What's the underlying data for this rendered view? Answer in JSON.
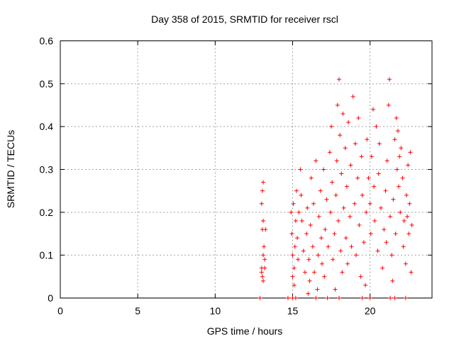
{
  "chart_data": {
    "type": "scatter",
    "title": "Day 358 of 2015, SRMTID for receiver rscl",
    "xlabel": "GPS time / hours",
    "ylabel": "SRMTID / TECUs",
    "xlim": [
      0,
      24
    ],
    "ylim": [
      0,
      0.6
    ],
    "xticks": [
      "0",
      "5",
      "10",
      "15",
      "20"
    ],
    "xtick_values": [
      0,
      5,
      10,
      15,
      20
    ],
    "yticks": [
      "0",
      "0.1",
      "0.2",
      "0.3",
      "0.4",
      "0.5",
      "0.6"
    ],
    "ytick_values": [
      0,
      0.1,
      0.2,
      0.3,
      0.4,
      0.5,
      0.6
    ],
    "grid": true,
    "marker": "+",
    "color": "#ff0000",
    "series": [
      {
        "name": "SRMTID",
        "points": [
          [
            12.9,
            0.0
          ],
          [
            13.0,
            0.07
          ],
          [
            13.0,
            0.06
          ],
          [
            13.05,
            0.25
          ],
          [
            13.1,
            0.27
          ],
          [
            13.0,
            0.22
          ],
          [
            13.1,
            0.18
          ],
          [
            13.05,
            0.16
          ],
          [
            13.1,
            0.1
          ],
          [
            13.15,
            0.12
          ],
          [
            13.2,
            0.09
          ],
          [
            13.05,
            0.05
          ],
          [
            13.2,
            0.07
          ],
          [
            13.25,
            0.16
          ],
          [
            13.1,
            0.04
          ],
          [
            14.7,
            0.0
          ],
          [
            14.9,
            0.2
          ],
          [
            14.95,
            0.15
          ],
          [
            15.0,
            0.1
          ],
          [
            15.05,
            0.22
          ],
          [
            15.1,
            0.07
          ],
          [
            15.15,
            0.12
          ],
          [
            15.2,
            0.18
          ],
          [
            15.25,
            0.25
          ],
          [
            15.0,
            0.05
          ],
          [
            15.1,
            0.03
          ],
          [
            15.3,
            0.14
          ],
          [
            15.35,
            0.09
          ],
          [
            15.4,
            0.2
          ],
          [
            15.2,
            0.0
          ],
          [
            15.5,
            0.3
          ],
          [
            15.55,
            0.24
          ],
          [
            15.6,
            0.18
          ],
          [
            15.7,
            0.11
          ],
          [
            15.8,
            0.06
          ],
          [
            15.9,
            0.15
          ],
          [
            15.95,
            0.21
          ],
          [
            16.0,
            0.01
          ],
          [
            16.05,
            0.09
          ],
          [
            16.1,
            0.04
          ],
          [
            16.15,
            0.17
          ],
          [
            16.2,
            0.28
          ],
          [
            16.3,
            0.12
          ],
          [
            16.35,
            0.22
          ],
          [
            16.4,
            0.06
          ],
          [
            16.5,
            0.32
          ],
          [
            16.6,
            0.02
          ],
          [
            16.65,
            0.1
          ],
          [
            16.7,
            0.19
          ],
          [
            16.8,
            0.25
          ],
          [
            16.85,
            0.14
          ],
          [
            16.9,
            0.08
          ],
          [
            17.0,
            0.3
          ],
          [
            17.05,
            0.05
          ],
          [
            17.1,
            0.16
          ],
          [
            17.2,
            0.23
          ],
          [
            17.25,
            0.0
          ],
          [
            17.3,
            0.12
          ],
          [
            17.4,
            0.34
          ],
          [
            17.45,
            0.2
          ],
          [
            17.5,
            0.4
          ],
          [
            17.55,
            0.27
          ],
          [
            17.6,
            0.09
          ],
          [
            17.7,
            0.15
          ],
          [
            17.75,
            0.02
          ],
          [
            17.8,
            0.24
          ],
          [
            17.85,
            0.32
          ],
          [
            17.9,
            0.45
          ],
          [
            17.95,
            0.18
          ],
          [
            18.0,
            0.51
          ],
          [
            18.05,
            0.38
          ],
          [
            18.1,
            0.11
          ],
          [
            18.15,
            0.29
          ],
          [
            18.2,
            0.06
          ],
          [
            18.25,
            0.43
          ],
          [
            18.3,
            0.21
          ],
          [
            18.4,
            0.35
          ],
          [
            18.45,
            0.14
          ],
          [
            18.5,
            0.26
          ],
          [
            18.55,
            0.08
          ],
          [
            18.6,
            0.41
          ],
          [
            18.7,
            0.19
          ],
          [
            18.75,
            0.31
          ],
          [
            18.8,
            0.12
          ],
          [
            18.9,
            0.47
          ],
          [
            19.0,
            0.22
          ],
          [
            19.05,
            0.36
          ],
          [
            19.1,
            0.1
          ],
          [
            19.2,
            0.28
          ],
          [
            19.25,
            0.42
          ],
          [
            19.3,
            0.17
          ],
          [
            19.4,
            0.05
          ],
          [
            19.45,
            0.33
          ],
          [
            19.5,
            0.24
          ],
          [
            19.6,
            0.13
          ],
          [
            19.7,
            0.03
          ],
          [
            19.75,
            0.2
          ],
          [
            19.8,
            0.37
          ],
          [
            19.9,
            0.28
          ],
          [
            20.0,
            0.22
          ],
          [
            20.05,
            0.15
          ],
          [
            20.1,
            0.33
          ],
          [
            20.2,
            0.44
          ],
          [
            20.25,
            0.26
          ],
          [
            20.3,
            0.18
          ],
          [
            20.4,
            0.4
          ],
          [
            20.5,
            0.11
          ],
          [
            20.55,
            0.29
          ],
          [
            20.6,
            0.36
          ],
          [
            20.7,
            0.21
          ],
          [
            20.8,
            0.07
          ],
          [
            20.9,
            0.16
          ],
          [
            21.0,
            0.25
          ],
          [
            21.05,
            0.13
          ],
          [
            21.1,
            0.32
          ],
          [
            21.2,
            0.45
          ],
          [
            21.25,
            0.51
          ],
          [
            21.3,
            0.19
          ],
          [
            21.4,
            0.1
          ],
          [
            21.45,
            0.04
          ],
          [
            21.5,
            0.23
          ],
          [
            21.6,
            0.37
          ],
          [
            21.65,
            0.15
          ],
          [
            21.7,
            0.42
          ],
          [
            21.75,
            0.3
          ],
          [
            21.8,
            0.39
          ],
          [
            21.85,
            0.26
          ],
          [
            21.9,
            0.33
          ],
          [
            21.95,
            0.2
          ],
          [
            22.0,
            0.35
          ],
          [
            22.1,
            0.28
          ],
          [
            22.15,
            0.12
          ],
          [
            22.2,
            0.18
          ],
          [
            22.3,
            0.08
          ],
          [
            22.35,
            0.24
          ],
          [
            22.4,
            0.19
          ],
          [
            22.45,
            0.31
          ],
          [
            22.5,
            0.15
          ],
          [
            22.55,
            0.22
          ],
          [
            22.6,
            0.34
          ],
          [
            22.65,
            0.06
          ],
          [
            22.7,
            0.17
          ],
          [
            15.0,
            0.0
          ],
          [
            16.5,
            0.0
          ],
          [
            18.0,
            0.0
          ],
          [
            19.5,
            0.0
          ],
          [
            20.0,
            0.0
          ],
          [
            21.3,
            0.0
          ],
          [
            21.6,
            0.0
          ],
          [
            22.3,
            0.0
          ]
        ]
      }
    ]
  }
}
